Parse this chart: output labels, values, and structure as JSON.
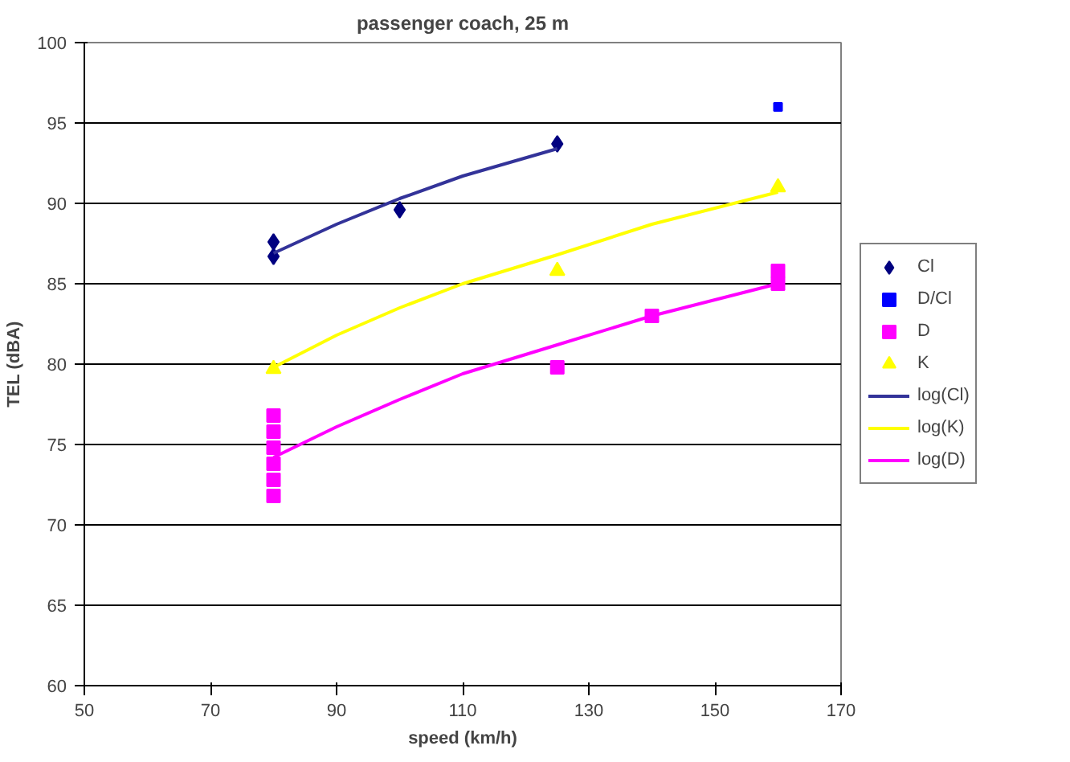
{
  "chart_data": {
    "type": "scatter",
    "title": "passenger coach, 25 m",
    "xlabel": "speed (km/h)",
    "ylabel": "TEL (dBA)",
    "xlim": [
      50,
      170
    ],
    "xticks": [
      50,
      70,
      90,
      110,
      130,
      150,
      170
    ],
    "ylim": [
      60,
      100
    ],
    "yticks": [
      60,
      65,
      70,
      75,
      80,
      85,
      90,
      95,
      100
    ],
    "grid": "y",
    "legend": "right",
    "series": [
      {
        "name": "Cl",
        "color": "#000080",
        "marker": "diamond",
        "x": [
          80,
          80,
          100,
          125
        ],
        "values": [
          87.6,
          86.7,
          89.6,
          93.7
        ]
      },
      {
        "name": "D/Cl",
        "color": "#0000ff",
        "marker": "square",
        "x": [
          160
        ],
        "values": [
          96
        ]
      },
      {
        "name": "D",
        "color": "#ff00ff",
        "marker": "square",
        "x": [
          80,
          80,
          80,
          80,
          80,
          80,
          125,
          140,
          160,
          160
        ],
        "values": [
          71.8,
          72.8,
          73.8,
          74.8,
          75.8,
          76.8,
          79.8,
          83,
          85,
          85.8
        ]
      },
      {
        "name": "K",
        "color": "#ffff00",
        "marker": "triangle",
        "x": [
          80,
          125,
          160
        ],
        "values": [
          79.7,
          85.8,
          91
        ]
      },
      {
        "name": "log(Cl)",
        "type": "line",
        "color": "#333399",
        "marker": "none",
        "x": [
          80,
          90,
          100,
          110,
          125
        ],
        "values": [
          86.9,
          88.7,
          90.3,
          91.7,
          93.4
        ]
      },
      {
        "name": "log(K)",
        "type": "line",
        "color": "#ffff00",
        "marker": "none",
        "x": [
          80,
          90,
          100,
          110,
          125,
          140,
          160
        ],
        "values": [
          79.8,
          81.8,
          83.5,
          85.0,
          86.8,
          88.7,
          90.7
        ]
      },
      {
        "name": "log(D)",
        "type": "line",
        "color": "#ff00ff",
        "marker": "none",
        "x": [
          80,
          90,
          100,
          110,
          125,
          140,
          160
        ],
        "values": [
          74.2,
          76.1,
          77.8,
          79.4,
          81.2,
          83.0,
          85.0
        ]
      }
    ]
  }
}
